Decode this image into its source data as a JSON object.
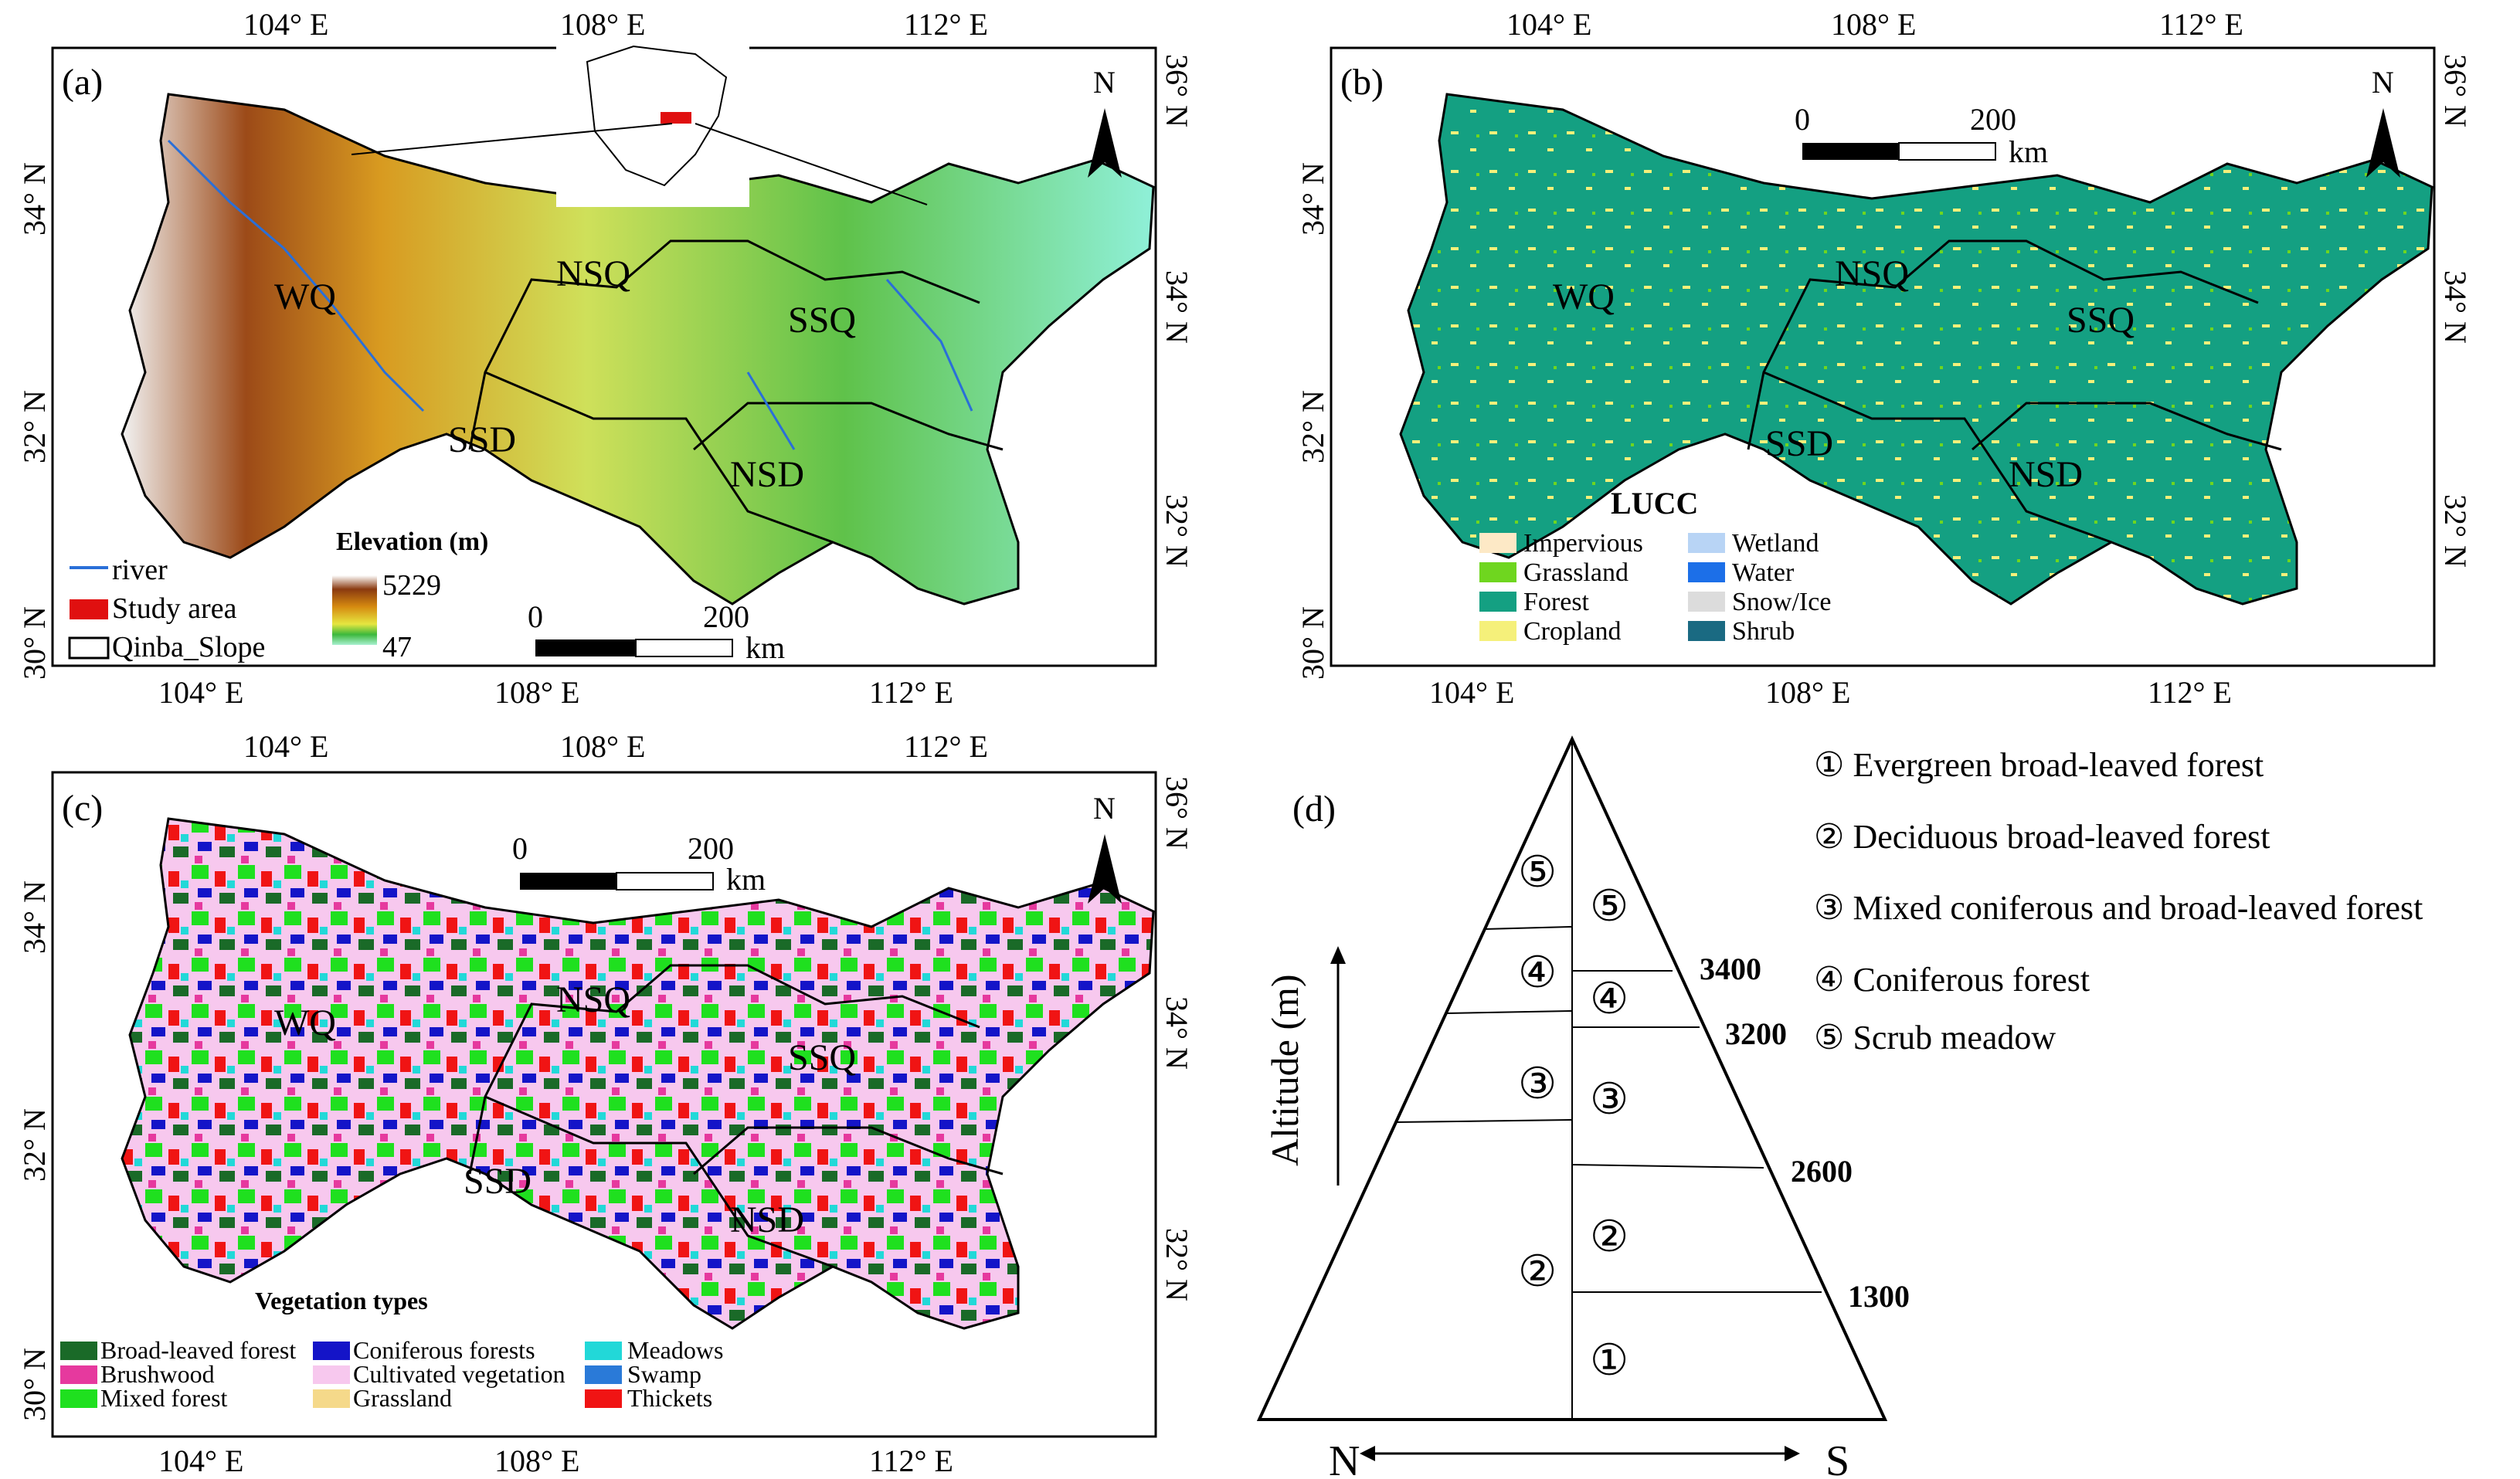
{
  "panels": {
    "a": {
      "letter": "(a)",
      "lon_ticks": [
        "104° E",
        "108° E",
        "112° E"
      ],
      "lat_left": [
        "34° N",
        "32° N",
        "30° N"
      ],
      "lat_right": [
        "36° N",
        "34° N",
        "32° N"
      ],
      "regions": [
        "WQ",
        "NSQ",
        "SSQ",
        "SSD",
        "NSD"
      ],
      "north": "N",
      "scale": {
        "start": "0",
        "end": "200",
        "unit": "km"
      },
      "elevation": {
        "title": "Elevation (m)",
        "max": "5229",
        "min": "47"
      },
      "legend": [
        "river",
        "Study area",
        "Qinba_Slope"
      ]
    },
    "b": {
      "letter": "(b)",
      "lon_ticks": [
        "104° E",
        "108° E",
        "112° E"
      ],
      "lat_left": [
        "34° N",
        "32° N",
        "30° N"
      ],
      "lat_right": [
        "36° N",
        "34° N",
        "32° N"
      ],
      "regions": [
        "WQ",
        "NSQ",
        "SSQ",
        "SSD",
        "NSD"
      ],
      "north": "N",
      "scale": {
        "start": "0",
        "end": "200",
        "unit": "km"
      },
      "legend_title": "LUCC",
      "legend": [
        {
          "label": "Impervious",
          "color": "#fde9c6"
        },
        {
          "label": "Grassland",
          "color": "#6fd61f"
        },
        {
          "label": "Forest",
          "color": "#14a082"
        },
        {
          "label": "Cropland",
          "color": "#f5f07a"
        },
        {
          "label": "Wetland",
          "color": "#b8d4f5"
        },
        {
          "label": "Water",
          "color": "#1c6fe8"
        },
        {
          "label": "Snow/Ice",
          "color": "#dcdcdc"
        },
        {
          "label": "Shrub",
          "color": "#1a6a82"
        }
      ]
    },
    "c": {
      "letter": "(c)",
      "lon_ticks": [
        "104° E",
        "108° E",
        "112° E"
      ],
      "lat_left": [
        "34° N",
        "32° N",
        "30° N"
      ],
      "lat_right": [
        "36° N",
        "34° N",
        "32° N"
      ],
      "regions": [
        "WQ",
        "NSQ",
        "SSQ",
        "SSD",
        "NSD"
      ],
      "north": "N",
      "scale": {
        "start": "0",
        "end": "200",
        "unit": "km"
      },
      "legend_title": "Vegetation types",
      "legend": [
        {
          "label": "Broad-leaved forest",
          "color": "#1a6a28"
        },
        {
          "label": "Brushwood",
          "color": "#e6399e"
        },
        {
          "label": "Mixed forest",
          "color": "#1fe01f"
        },
        {
          "label": "Coniferous forests",
          "color": "#1414c8"
        },
        {
          "label": "Cultivated vegetation",
          "color": "#f7c8ee"
        },
        {
          "label": "Grassland",
          "color": "#f5d98a"
        },
        {
          "label": "Meadows",
          "color": "#22d8d8"
        },
        {
          "label": "Swamp",
          "color": "#2a7ad8"
        },
        {
          "label": "Thickets",
          "color": "#f01414"
        }
      ]
    },
    "d": {
      "letter": "(d)",
      "y_axis": "Altitude (m)",
      "bottom_left": "N",
      "bottom_right": "S",
      "altitudes": [
        "3400",
        "3200",
        "2600",
        "1300"
      ],
      "left_zones": [
        "⑤",
        "④",
        "③",
        "②"
      ],
      "right_zones": [
        "⑤",
        "④",
        "③",
        "②",
        "①"
      ],
      "legend": [
        "① Evergreen broad-leaved forest",
        "② Deciduous broad-leaved forest",
        "③ Mixed coniferous and broad-leaved forest",
        "④ Coniferous forest",
        "⑤ Scrub meadow"
      ]
    }
  }
}
